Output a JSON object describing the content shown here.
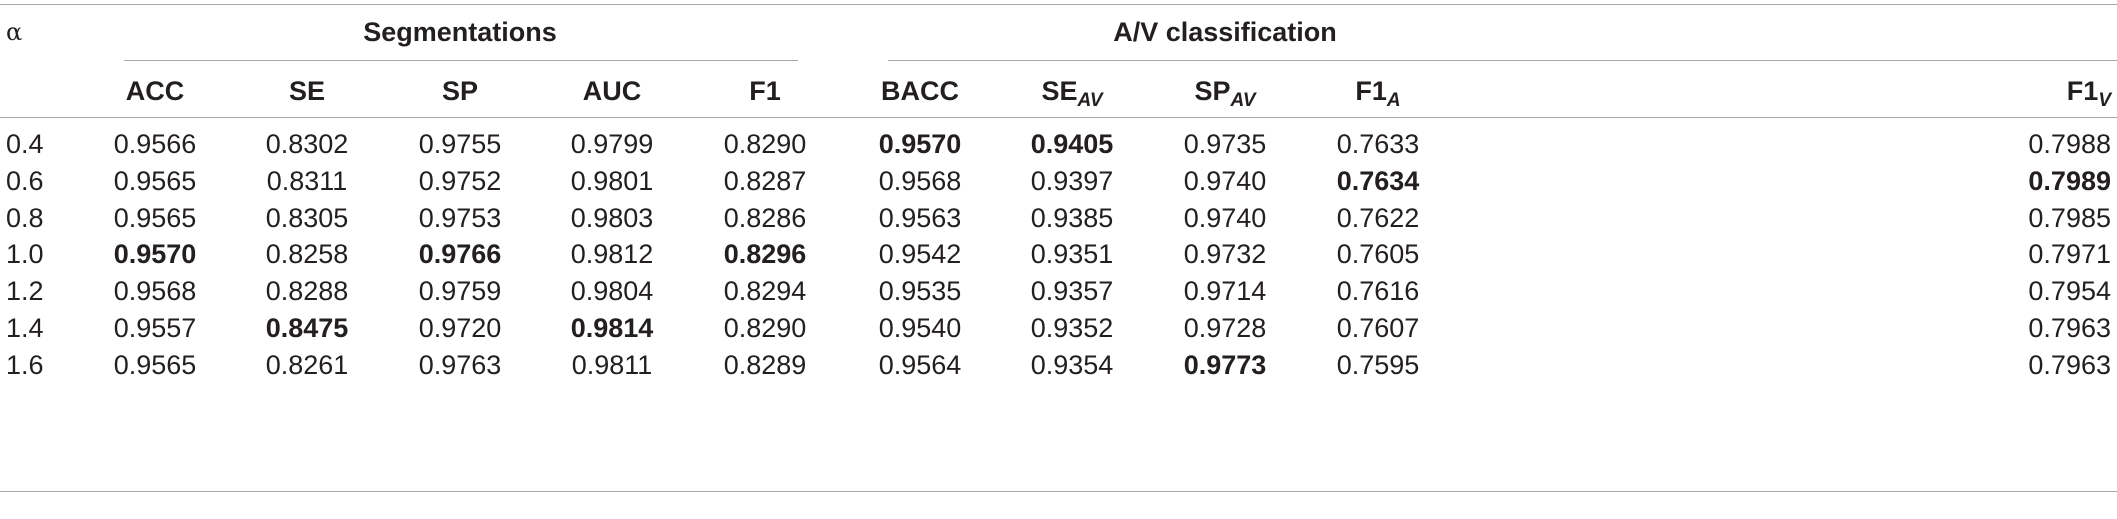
{
  "table": {
    "alpha_label": "α",
    "group_segmentations": "Segmentations",
    "group_av": "A/V classification",
    "columns": [
      {
        "label": "ACC",
        "sub": ""
      },
      {
        "label": "SE",
        "sub": ""
      },
      {
        "label": "SP",
        "sub": ""
      },
      {
        "label": "AUC",
        "sub": ""
      },
      {
        "label": "F1",
        "sub": ""
      },
      {
        "label": "BACC",
        "sub": ""
      },
      {
        "label": "SE",
        "sub": "AV"
      },
      {
        "label": "SP",
        "sub": "AV"
      },
      {
        "label": "F1",
        "sub": "A"
      },
      {
        "label": "F1",
        "sub": "V"
      }
    ],
    "rows": [
      {
        "alpha": "0.4",
        "values": [
          "0.9566",
          "0.8302",
          "0.9755",
          "0.9799",
          "0.8290",
          "0.9570",
          "0.9405",
          "0.9735",
          "0.7633",
          "0.7988"
        ],
        "bold": [
          5,
          6
        ]
      },
      {
        "alpha": "0.6",
        "values": [
          "0.9565",
          "0.8311",
          "0.9752",
          "0.9801",
          "0.8287",
          "0.9568",
          "0.9397",
          "0.9740",
          "0.7634",
          "0.7989"
        ],
        "bold": [
          8,
          9
        ]
      },
      {
        "alpha": "0.8",
        "values": [
          "0.9565",
          "0.8305",
          "0.9753",
          "0.9803",
          "0.8286",
          "0.9563",
          "0.9385",
          "0.9740",
          "0.7622",
          "0.7985"
        ],
        "bold": []
      },
      {
        "alpha": "1.0",
        "values": [
          "0.9570",
          "0.8258",
          "0.9766",
          "0.9812",
          "0.8296",
          "0.9542",
          "0.9351",
          "0.9732",
          "0.7605",
          "0.7971"
        ],
        "bold": [
          0,
          2,
          4
        ]
      },
      {
        "alpha": "1.2",
        "values": [
          "0.9568",
          "0.8288",
          "0.9759",
          "0.9804",
          "0.8294",
          "0.9535",
          "0.9357",
          "0.9714",
          "0.7616",
          "0.7954"
        ],
        "bold": []
      },
      {
        "alpha": "1.4",
        "values": [
          "0.9557",
          "0.8475",
          "0.9720",
          "0.9814",
          "0.8290",
          "0.9540",
          "0.9352",
          "0.9728",
          "0.7607",
          "0.7963"
        ],
        "bold": [
          1,
          3
        ]
      },
      {
        "alpha": "1.6",
        "values": [
          "0.9565",
          "0.8261",
          "0.9763",
          "0.9811",
          "0.8289",
          "0.9564",
          "0.9354",
          "0.9773",
          "0.7595",
          "0.7963"
        ],
        "bold": [
          7
        ]
      }
    ]
  }
}
